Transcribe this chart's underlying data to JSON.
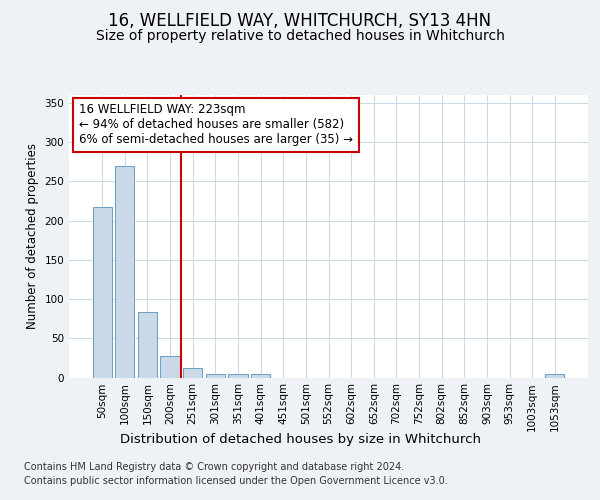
{
  "title": "16, WELLFIELD WAY, WHITCHURCH, SY13 4HN",
  "subtitle": "Size of property relative to detached houses in Whitchurch",
  "xlabel": "Distribution of detached houses by size in Whitchurch",
  "ylabel": "Number of detached properties",
  "footnote1": "Contains HM Land Registry data © Crown copyright and database right 2024.",
  "footnote2": "Contains public sector information licensed under the Open Government Licence v3.0.",
  "bar_labels": [
    "50sqm",
    "100sqm",
    "150sqm",
    "200sqm",
    "251sqm",
    "301sqm",
    "351sqm",
    "401sqm",
    "451sqm",
    "501sqm",
    "552sqm",
    "602sqm",
    "652sqm",
    "702sqm",
    "752sqm",
    "802sqm",
    "852sqm",
    "903sqm",
    "953sqm",
    "1003sqm",
    "1053sqm"
  ],
  "bar_values": [
    217,
    270,
    83,
    28,
    12,
    5,
    5,
    4,
    0,
    0,
    0,
    0,
    0,
    0,
    0,
    0,
    0,
    0,
    0,
    0,
    4
  ],
  "bar_color": "#c9d9e8",
  "bar_edge_color": "#6a9fc0",
  "vline_x": 3.5,
  "vline_color": "#cc0000",
  "annotation_text": "16 WELLFIELD WAY: 223sqm\n← 94% of detached houses are smaller (582)\n6% of semi-detached houses are larger (35) →",
  "annotation_box_color": "#ffffff",
  "annotation_box_edge": "#cc0000",
  "ylim": [
    0,
    360
  ],
  "yticks": [
    0,
    50,
    100,
    150,
    200,
    250,
    300,
    350
  ],
  "background_color": "#eef2f7",
  "axes_background": "#ffffff",
  "grid_color": "#c8d8e8",
  "title_fontsize": 12,
  "subtitle_fontsize": 10,
  "xlabel_fontsize": 9.5,
  "ylabel_fontsize": 8.5,
  "tick_fontsize": 7.5,
  "annot_fontsize": 8.5,
  "footnote_fontsize": 7
}
